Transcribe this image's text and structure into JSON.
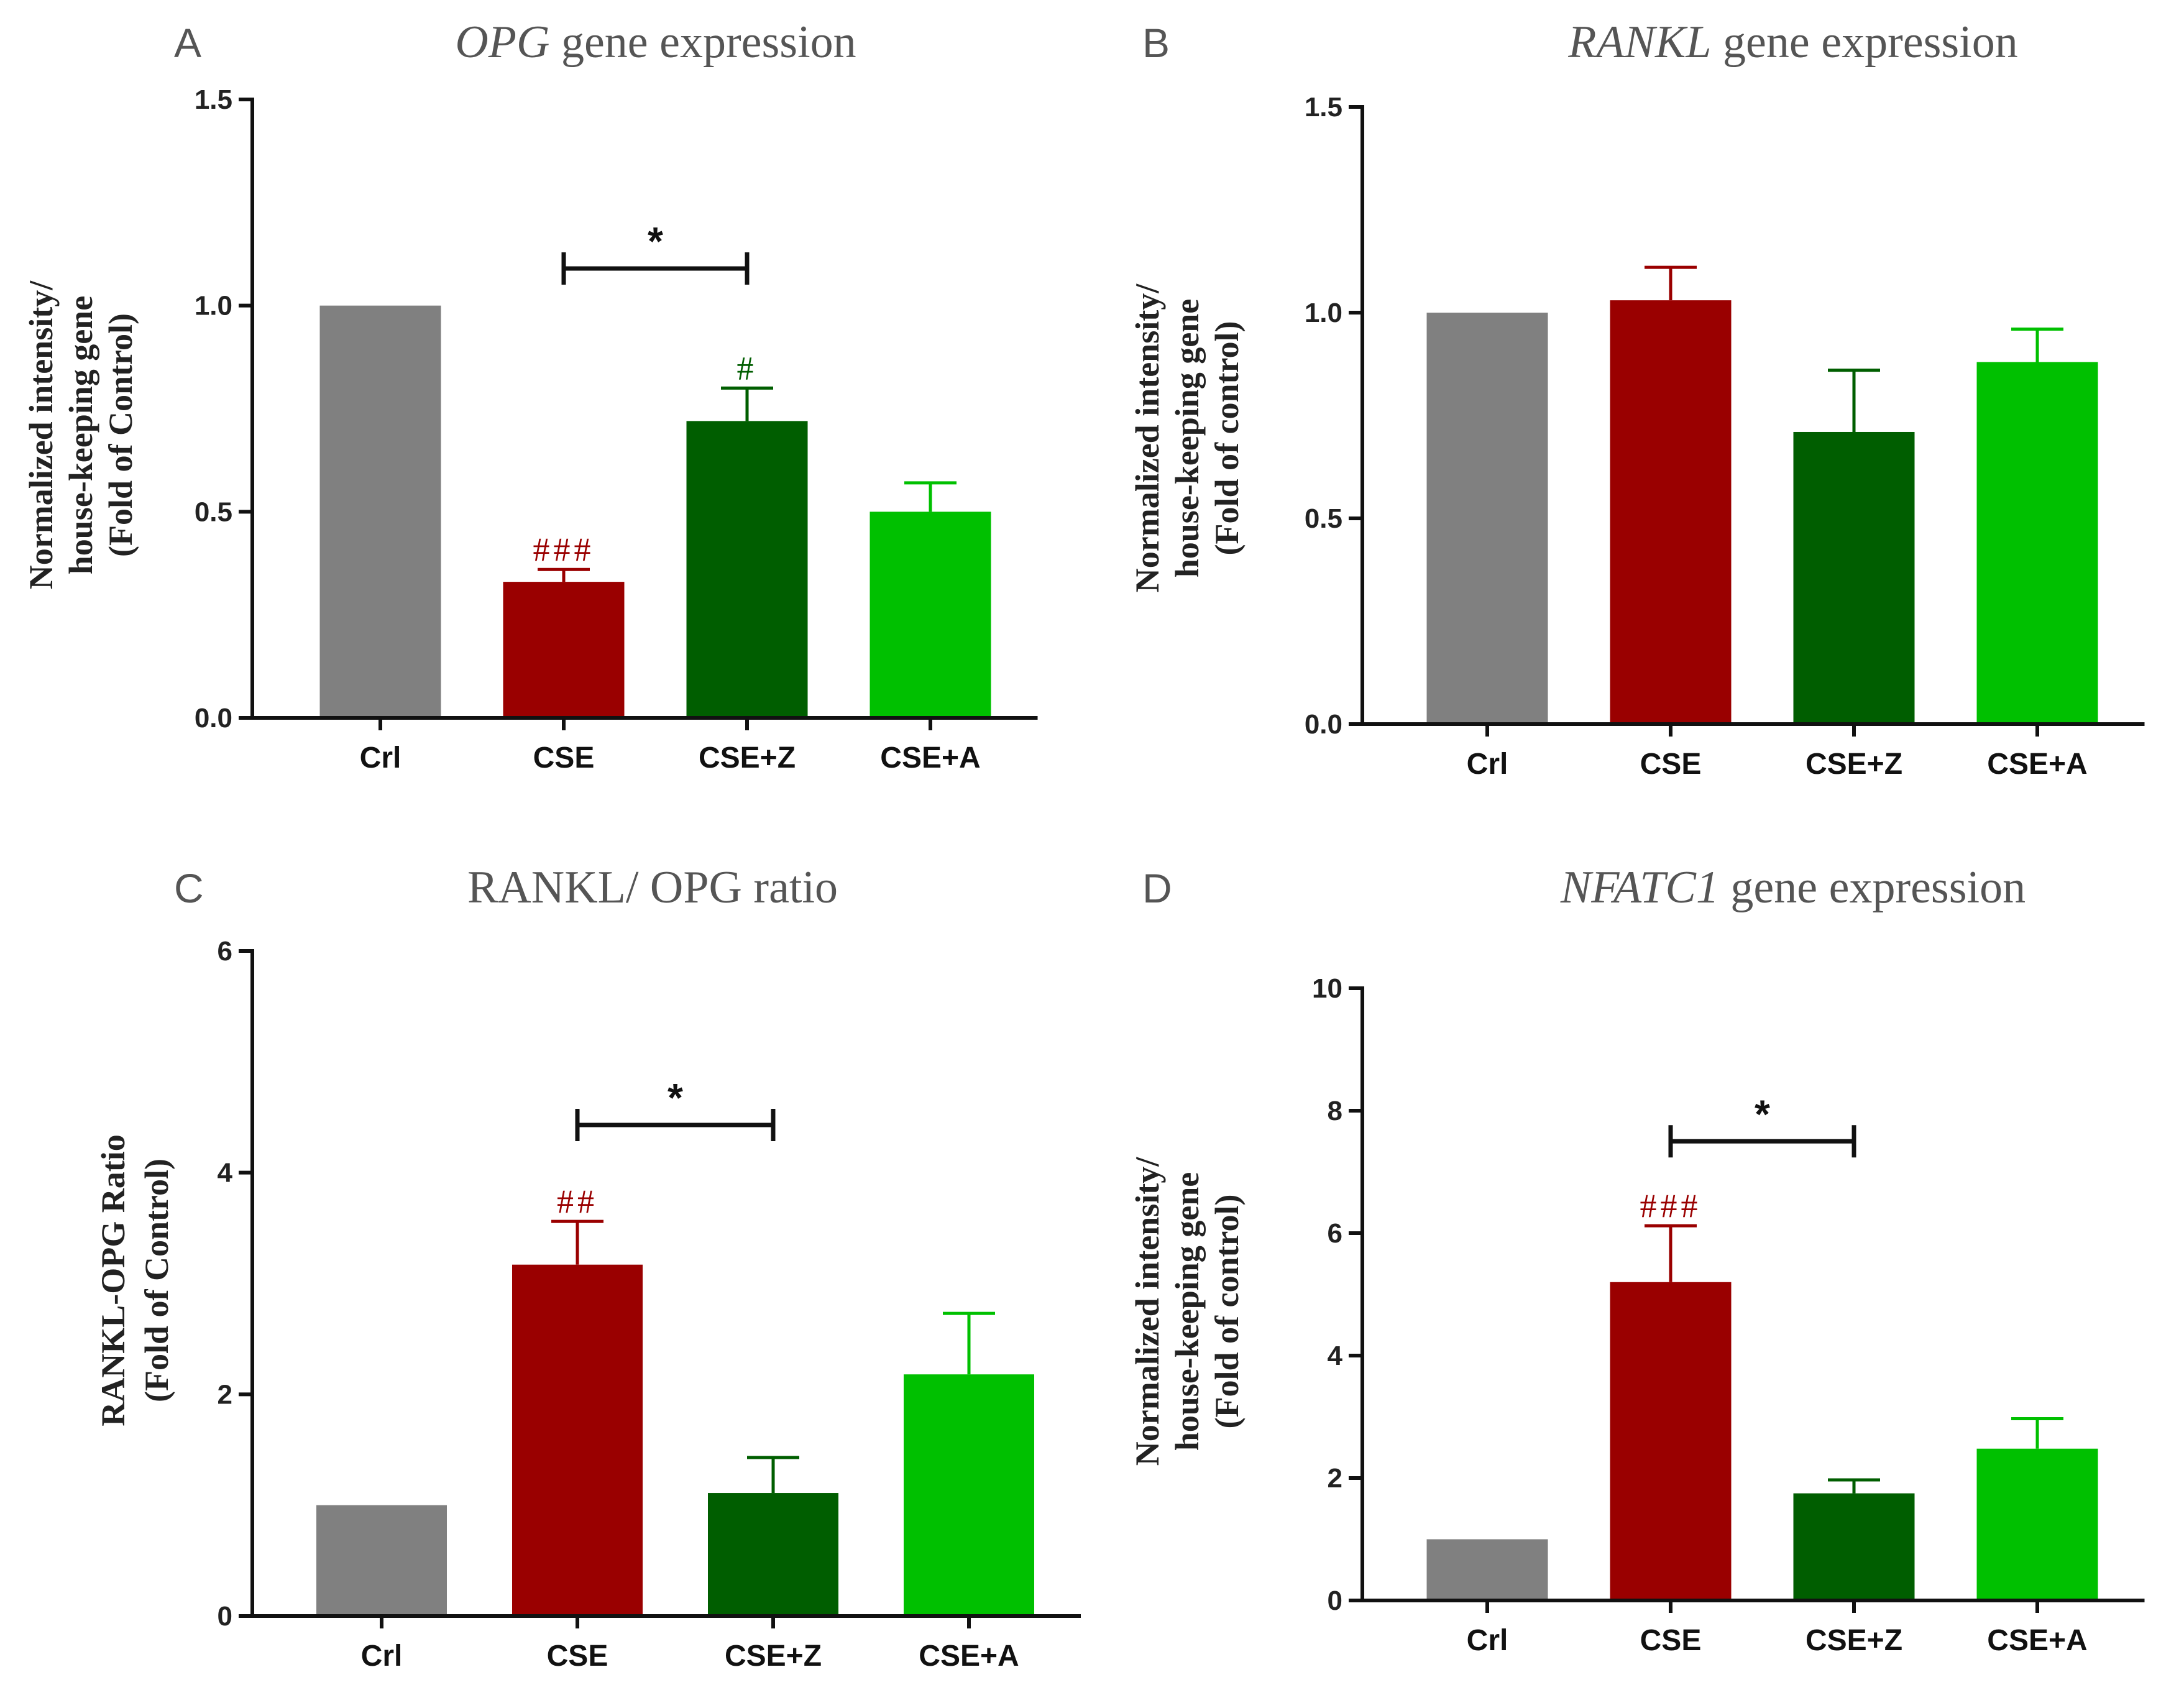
{
  "colors": {
    "Crl": "#808080",
    "CSE": "#9a0000",
    "CSE+Z": "#005e00",
    "CSE+A": "#00c000"
  },
  "chart_data": [
    {
      "panel": "A",
      "type": "bar",
      "title": {
        "italic": "OPG",
        "rest": " gene expression"
      },
      "ylabel": [
        "Normalized intensity/",
        "house-keeping gene",
        "(Fold of Control)"
      ],
      "categories": [
        "Crl",
        "CSE",
        "CSE+Z",
        "CSE+A"
      ],
      "values": [
        1.0,
        0.33,
        0.72,
        0.5
      ],
      "errors": [
        0.0,
        0.03,
        0.08,
        0.07
      ],
      "ylim": [
        0,
        1.5
      ],
      "yticks": [
        0.0,
        0.5,
        1.0,
        1.5
      ],
      "yticklabels": [
        "0.0",
        "0.5",
        "1.0",
        "1.5"
      ],
      "annotations": [
        {
          "category": "CSE",
          "text": "###"
        },
        {
          "category": "CSE+Z",
          "text": "#"
        }
      ],
      "comparison": {
        "from": "CSE",
        "to": "CSE+Z",
        "level": 1.09,
        "text": "*"
      }
    },
    {
      "panel": "B",
      "type": "bar",
      "title": {
        "italic": "RANKL",
        "rest": " gene expression"
      },
      "ylabel": [
        "Normalized intensity/",
        "house-keeping gene",
        "(Fold of control)"
      ],
      "categories": [
        "Crl",
        "CSE",
        "CSE+Z",
        "CSE+A"
      ],
      "values": [
        1.0,
        1.03,
        0.71,
        0.88
      ],
      "errors": [
        0.0,
        0.08,
        0.15,
        0.08
      ],
      "ylim": [
        0,
        1.5
      ],
      "yticks": [
        0.0,
        0.5,
        1.0,
        1.5
      ],
      "yticklabels": [
        "0.0",
        "0.5",
        "1.0",
        "1.5"
      ],
      "annotations": [],
      "comparison": null
    },
    {
      "panel": "C",
      "type": "bar",
      "title": {
        "italic": "",
        "rest": "RANKL/ OPG ratio"
      },
      "ylabel": [
        "RANKL-OPG Ratio",
        "(Fold of Control)"
      ],
      "categories": [
        "Crl",
        "CSE",
        "CSE+Z",
        "CSE+A"
      ],
      "values": [
        1.0,
        3.17,
        1.11,
        2.18
      ],
      "errors": [
        0.0,
        0.39,
        0.32,
        0.55
      ],
      "ylim": [
        0,
        6
      ],
      "yticks": [
        0,
        2,
        4,
        6
      ],
      "yticklabels": [
        "0",
        "2",
        "4",
        "6"
      ],
      "annotations": [
        {
          "category": "CSE",
          "text": "##"
        }
      ],
      "comparison": {
        "from": "CSE",
        "to": "CSE+Z",
        "level": 4.43,
        "text": "*"
      }
    },
    {
      "panel": "D",
      "type": "bar",
      "title": {
        "italic": "NFATC1",
        "rest": " gene expression"
      },
      "ylabel": [
        "Normalized intensity/",
        "house-keeping gene",
        "(Fold of control)"
      ],
      "categories": [
        "Crl",
        "CSE",
        "CSE+Z",
        "CSE+A"
      ],
      "values": [
        1.0,
        5.2,
        1.75,
        2.48
      ],
      "errors": [
        0.0,
        0.92,
        0.22,
        0.49
      ],
      "ylim": [
        0,
        10
      ],
      "yticks": [
        0,
        2,
        4,
        6,
        8,
        10
      ],
      "yticklabels": [
        "0",
        "2",
        "4",
        "6",
        "8",
        "10"
      ],
      "annotations": [
        {
          "category": "CSE",
          "text": "###"
        }
      ],
      "comparison": {
        "from": "CSE",
        "to": "CSE+Z",
        "level": 7.5,
        "text": "*"
      }
    }
  ]
}
